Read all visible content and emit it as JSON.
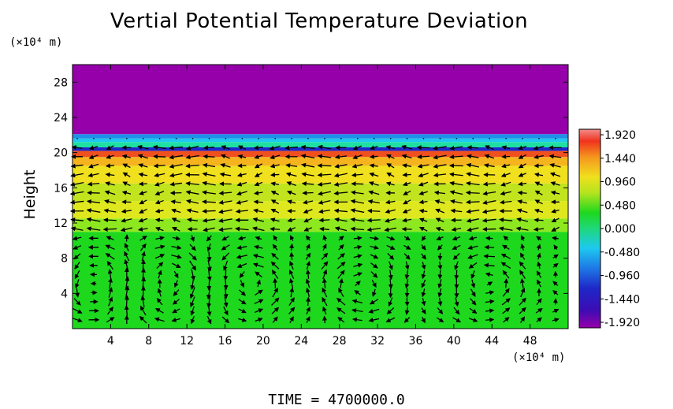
{
  "chart_data": {
    "type": "heatmap",
    "title": "Vertial Potential Temperature Deviation",
    "ylabel": "Height",
    "y_unit": "(×10⁴ m)",
    "x_unit": "(×10⁴ m)",
    "xlim": [
      0,
      52
    ],
    "ylim": [
      0,
      30
    ],
    "x_ticks": [
      4,
      8,
      12,
      16,
      20,
      24,
      28,
      32,
      36,
      40,
      44,
      48
    ],
    "y_ticks": [
      4,
      8,
      12,
      16,
      20,
      24,
      28
    ],
    "colorbar": {
      "ticks": [
        "1.920",
        "1.440",
        "0.960",
        "0.480",
        "0.000",
        "-0.480",
        "-0.960",
        "-1.440",
        "-1.920"
      ],
      "range": [
        -1.92,
        1.92
      ]
    },
    "field_bands": [
      {
        "y0": 0,
        "y1": 11,
        "value": 0.15,
        "color": "#1ed81e"
      },
      {
        "y0": 11,
        "y1": 12.5,
        "value": 0.6,
        "color": "#8ee820"
      },
      {
        "y0": 12.5,
        "y1": 14.5,
        "value": 0.85,
        "color": "#dfe81e"
      },
      {
        "y0": 14.5,
        "y1": 16.5,
        "value": 0.75,
        "color": "#c0e41e"
      },
      {
        "y0": 16.5,
        "y1": 18.5,
        "value": 1.0,
        "color": "#f0e01e"
      },
      {
        "y0": 18.5,
        "y1": 19.5,
        "value": 1.3,
        "color": "#f5b41e"
      },
      {
        "y0": 19.5,
        "y1": 20.2,
        "value": 1.7,
        "color": "#f0501e"
      },
      {
        "y0": 20.2,
        "y1": 20.6,
        "value": -1.6,
        "color": "#1e28c8"
      },
      {
        "y0": 20.6,
        "y1": 21.2,
        "value": 0.1,
        "color": "#1ee0a0"
      },
      {
        "y0": 21.2,
        "y1": 21.6,
        "value": -0.4,
        "color": "#1ec8f0"
      },
      {
        "y0": 21.6,
        "y1": 22.1,
        "value": -0.9,
        "color": "#1e90e8"
      },
      {
        "y0": 22.1,
        "y1": 30,
        "value": -1.92,
        "color": "#9600aa"
      }
    ],
    "vectors": "wind field arrows overlaid on potential temperature deviation"
  },
  "time_label": "TIME  =  4700000.0"
}
